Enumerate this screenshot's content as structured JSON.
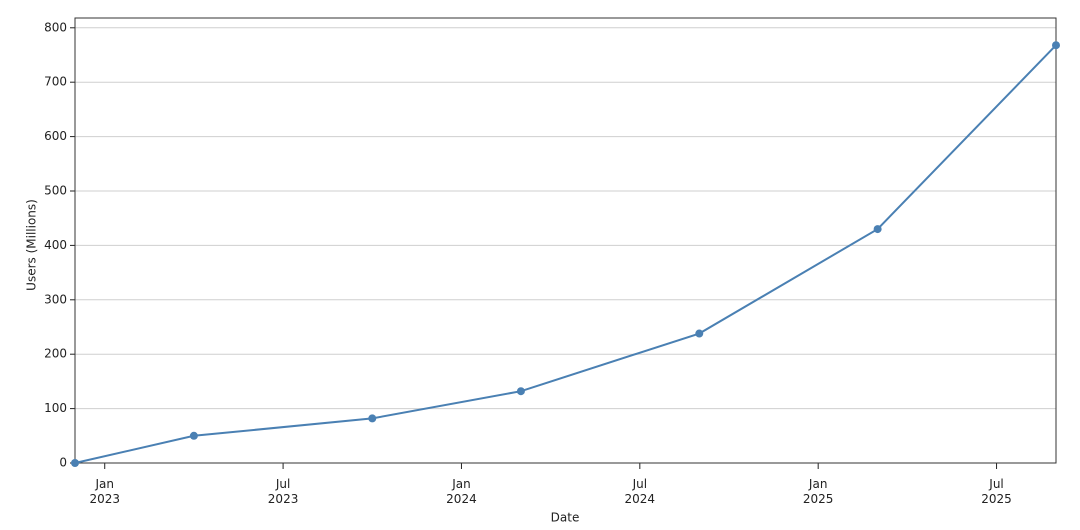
{
  "chart_data": {
    "type": "line",
    "x_label": "Date",
    "y_label": "Users (Millions)",
    "x": [
      "2022-12",
      "2023-04",
      "2023-10",
      "2024-03",
      "2024-09",
      "2025-03",
      "2025-09"
    ],
    "series": [
      {
        "color": "#4a80b3",
        "values": [
          0,
          50,
          82,
          132,
          238,
          430,
          768
        ]
      }
    ],
    "xlim": [
      "2022-12",
      "2025-09"
    ],
    "xticks": [
      {
        "value": "2023-01",
        "label": "Jan\n2023"
      },
      {
        "value": "2023-07",
        "label": "Jul\n2023"
      },
      {
        "value": "2024-01",
        "label": "Jan\n2024"
      },
      {
        "value": "2024-07",
        "label": "Jul\n2024"
      },
      {
        "value": "2025-01",
        "label": "Jan\n2025"
      },
      {
        "value": "2025-07",
        "label": "Jul\n2025"
      }
    ],
    "ylim": [
      0,
      818
    ],
    "yticks": [
      0,
      100,
      200,
      300,
      400,
      500,
      600,
      700,
      800
    ],
    "grid": true
  }
}
